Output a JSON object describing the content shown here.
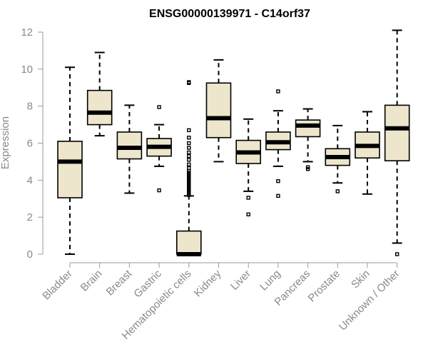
{
  "chart_data": {
    "type": "boxplot",
    "title": "ENSG00000139971 - C14orf37",
    "xlabel": "",
    "ylabel": "Expression",
    "ylim": [
      0,
      12
    ],
    "yticks": [
      0,
      2,
      4,
      6,
      8,
      10,
      12
    ],
    "grid": false,
    "box_fill": "#ede6cc",
    "categories": [
      "Bladder",
      "Brain",
      "Breast",
      "Gastric",
      "Hematopoietic cells",
      "Kidney",
      "Liver",
      "Lung",
      "Pancreas",
      "Prostate",
      "Skin",
      "Unknown / Other"
    ],
    "boxes": [
      {
        "min": 0.0,
        "q1": 3.05,
        "median": 5.0,
        "q3": 6.1,
        "max": 10.1,
        "outliers": []
      },
      {
        "min": 6.4,
        "q1": 7.0,
        "median": 7.65,
        "q3": 8.85,
        "max": 10.9,
        "outliers": []
      },
      {
        "min": 3.3,
        "q1": 5.15,
        "median": 5.75,
        "q3": 6.6,
        "max": 8.05,
        "outliers": []
      },
      {
        "min": 4.75,
        "q1": 5.3,
        "median": 5.8,
        "q3": 6.25,
        "max": 7.0,
        "outliers": [
          7.95,
          3.45
        ]
      },
      {
        "min": 0.0,
        "q1": 0.0,
        "median": 0.0,
        "q3": 1.25,
        "max": 3.15,
        "outliers": [
          3.2,
          3.3,
          3.4,
          3.5,
          3.6,
          3.7,
          3.8,
          3.9,
          4.0,
          4.1,
          4.2,
          4.3,
          4.4,
          4.5,
          4.65,
          4.85,
          5.1,
          5.3,
          5.5,
          5.75,
          6.0,
          6.3,
          6.7,
          9.25,
          9.3
        ]
      },
      {
        "min": 5.0,
        "q1": 6.3,
        "median": 7.35,
        "q3": 9.25,
        "max": 10.5,
        "outliers": []
      },
      {
        "min": 3.4,
        "q1": 4.9,
        "median": 5.5,
        "q3": 6.15,
        "max": 7.3,
        "outliers": [
          3.05,
          2.15
        ]
      },
      {
        "min": 4.75,
        "q1": 5.65,
        "median": 6.05,
        "q3": 6.6,
        "max": 7.75,
        "outliers": [
          8.8,
          3.95,
          3.15
        ]
      },
      {
        "min": 5.0,
        "q1": 6.35,
        "median": 6.95,
        "q3": 7.25,
        "max": 7.85,
        "outliers": [
          4.7,
          4.6
        ]
      },
      {
        "min": 3.85,
        "q1": 4.8,
        "median": 5.25,
        "q3": 5.7,
        "max": 6.95,
        "outliers": [
          3.4
        ]
      },
      {
        "min": 3.25,
        "q1": 5.2,
        "median": 5.85,
        "q3": 6.6,
        "max": 7.7,
        "outliers": []
      },
      {
        "min": 0.6,
        "q1": 5.05,
        "median": 6.8,
        "q3": 8.05,
        "max": 12.1,
        "outliers": [
          0.0
        ]
      }
    ]
  }
}
